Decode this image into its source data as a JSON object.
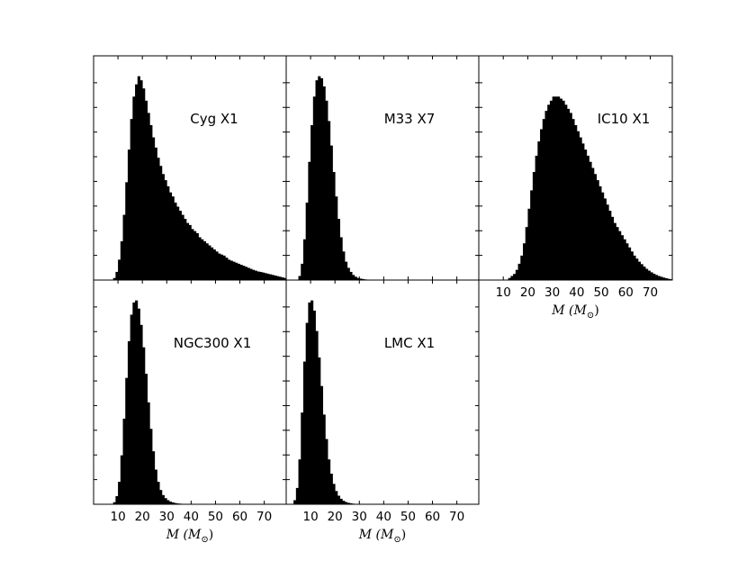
{
  "chart_data": [
    {
      "type": "bar",
      "title": "Cyg X1",
      "xlim": [
        0,
        79
      ],
      "ylim": [
        0,
        1.1
      ],
      "xticks": [
        10,
        20,
        30,
        40,
        50,
        60,
        70
      ],
      "show_xticklabels": false,
      "xlabel": "",
      "bin_width": 1,
      "x": [
        8,
        9,
        10,
        11,
        12,
        13,
        14,
        15,
        16,
        17,
        18,
        19,
        20,
        21,
        22,
        23,
        24,
        25,
        26,
        27,
        28,
        29,
        30,
        31,
        32,
        33,
        34,
        35,
        36,
        37,
        38,
        39,
        40,
        41,
        42,
        43,
        44,
        45,
        46,
        47,
        48,
        49,
        50,
        51,
        52,
        53,
        54,
        55,
        56,
        57,
        58,
        59,
        60,
        61,
        62,
        63,
        64,
        65,
        66,
        67,
        68,
        69,
        70,
        71,
        72,
        73,
        74,
        75,
        76,
        77,
        78
      ],
      "values": [
        0.01,
        0.04,
        0.1,
        0.19,
        0.32,
        0.48,
        0.64,
        0.79,
        0.9,
        0.96,
        1.0,
        0.98,
        0.94,
        0.88,
        0.82,
        0.76,
        0.7,
        0.65,
        0.6,
        0.56,
        0.52,
        0.49,
        0.46,
        0.43,
        0.41,
        0.38,
        0.36,
        0.34,
        0.32,
        0.3,
        0.28,
        0.27,
        0.25,
        0.24,
        0.23,
        0.21,
        0.2,
        0.19,
        0.18,
        0.17,
        0.16,
        0.15,
        0.14,
        0.13,
        0.125,
        0.12,
        0.11,
        0.1,
        0.095,
        0.09,
        0.085,
        0.08,
        0.075,
        0.07,
        0.065,
        0.06,
        0.055,
        0.05,
        0.046,
        0.042,
        0.04,
        0.037,
        0.034,
        0.031,
        0.028,
        0.025,
        0.022,
        0.019,
        0.016,
        0.013,
        0.01
      ]
    },
    {
      "type": "bar",
      "title": "M33 X7",
      "xlim": [
        0,
        79
      ],
      "ylim": [
        0,
        1.1
      ],
      "xticks": [
        10,
        20,
        30,
        40,
        50,
        60,
        70
      ],
      "show_xticklabels": false,
      "xlabel": "",
      "bin_width": 1,
      "x": [
        5,
        6,
        7,
        8,
        9,
        10,
        11,
        12,
        13,
        14,
        15,
        16,
        17,
        18,
        19,
        20,
        21,
        22,
        23,
        24,
        25,
        26,
        27,
        28,
        29,
        30,
        31,
        32,
        33
      ],
      "values": [
        0.02,
        0.08,
        0.2,
        0.38,
        0.58,
        0.76,
        0.9,
        0.98,
        1.0,
        0.99,
        0.95,
        0.88,
        0.78,
        0.66,
        0.53,
        0.41,
        0.3,
        0.21,
        0.14,
        0.09,
        0.06,
        0.04,
        0.025,
        0.016,
        0.01,
        0.007,
        0.005,
        0.003,
        0.002
      ]
    },
    {
      "type": "bar",
      "title": "IC10 X1",
      "xlim": [
        0,
        79
      ],
      "ylim": [
        0,
        1.1
      ],
      "xticks": [
        10,
        20,
        30,
        40,
        50,
        60,
        70
      ],
      "show_xticklabels": true,
      "xlabel": "M (M⊙)",
      "bin_width": 1,
      "x": [
        12,
        13,
        14,
        15,
        16,
        17,
        18,
        19,
        20,
        21,
        22,
        23,
        24,
        25,
        26,
        27,
        28,
        29,
        30,
        31,
        32,
        33,
        34,
        35,
        36,
        37,
        38,
        39,
        40,
        41,
        42,
        43,
        44,
        45,
        46,
        47,
        48,
        49,
        50,
        51,
        52,
        53,
        54,
        55,
        56,
        57,
        58,
        59,
        60,
        61,
        62,
        63,
        64,
        65,
        66,
        67,
        68,
        69,
        70,
        71,
        72,
        73,
        74,
        75,
        76,
        77,
        78
      ],
      "values": [
        0.01,
        0.02,
        0.03,
        0.05,
        0.08,
        0.12,
        0.18,
        0.26,
        0.35,
        0.44,
        0.53,
        0.61,
        0.68,
        0.74,
        0.79,
        0.83,
        0.86,
        0.88,
        0.9,
        0.9,
        0.9,
        0.89,
        0.88,
        0.86,
        0.84,
        0.82,
        0.79,
        0.76,
        0.73,
        0.7,
        0.67,
        0.64,
        0.61,
        0.58,
        0.55,
        0.52,
        0.49,
        0.46,
        0.43,
        0.4,
        0.37,
        0.34,
        0.31,
        0.28,
        0.26,
        0.24,
        0.22,
        0.2,
        0.18,
        0.16,
        0.14,
        0.12,
        0.105,
        0.09,
        0.078,
        0.066,
        0.055,
        0.046,
        0.038,
        0.031,
        0.025,
        0.02,
        0.016,
        0.012,
        0.009,
        0.006,
        0.004
      ]
    },
    {
      "type": "bar",
      "title": "NGC300 X1",
      "xlim": [
        0,
        79
      ],
      "ylim": [
        0,
        1.1
      ],
      "xticks": [
        10,
        20,
        30,
        40,
        50,
        60,
        70
      ],
      "show_xticklabels": true,
      "xlabel": "M (M⊙)",
      "bin_width": 1,
      "x": [
        8,
        9,
        10,
        11,
        12,
        13,
        14,
        15,
        16,
        17,
        18,
        19,
        20,
        21,
        22,
        23,
        24,
        25,
        26,
        27,
        28,
        29,
        30,
        31,
        32,
        33,
        34,
        35,
        36
      ],
      "values": [
        0.01,
        0.04,
        0.11,
        0.24,
        0.42,
        0.62,
        0.8,
        0.93,
        0.99,
        1.0,
        0.96,
        0.88,
        0.77,
        0.64,
        0.5,
        0.37,
        0.26,
        0.17,
        0.11,
        0.07,
        0.045,
        0.03,
        0.02,
        0.013,
        0.009,
        0.006,
        0.004,
        0.003,
        0.002
      ]
    },
    {
      "type": "bar",
      "title": "LMC X1",
      "xlim": [
        0,
        79
      ],
      "ylim": [
        0,
        1.1
      ],
      "xticks": [
        10,
        20,
        30,
        40,
        50,
        60,
        70
      ],
      "show_xticklabels": true,
      "xlabel": "M (M⊙)",
      "bin_width": 1,
      "x": [
        3,
        4,
        5,
        6,
        7,
        8,
        9,
        10,
        11,
        12,
        13,
        14,
        15,
        16,
        17,
        18,
        19,
        20,
        21,
        22,
        23,
        24,
        25,
        26,
        27,
        28,
        29,
        30
      ],
      "values": [
        0.02,
        0.08,
        0.22,
        0.45,
        0.7,
        0.89,
        0.99,
        1.0,
        0.95,
        0.85,
        0.72,
        0.58,
        0.44,
        0.32,
        0.22,
        0.15,
        0.1,
        0.065,
        0.042,
        0.027,
        0.017,
        0.011,
        0.007,
        0.005,
        0.003,
        0.002,
        0.0015,
        0.001
      ]
    }
  ]
}
